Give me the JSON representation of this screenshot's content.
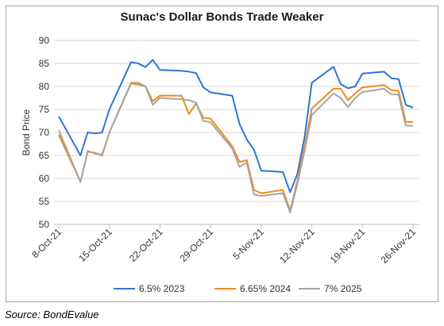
{
  "chart_data": {
    "type": "line",
    "title": "Sunac's Dollar Bonds Trade Weaker",
    "ylabel": "Bond Price",
    "xlabel": "",
    "ylim": [
      50,
      90
    ],
    "yticks": [
      50,
      55,
      60,
      65,
      70,
      75,
      80,
      85,
      90
    ],
    "grid": "horizontal",
    "legend": "bottom",
    "x_tick_labels": [
      "8-Oct-21",
      "15-Oct-21",
      "22-Oct-21",
      "29-Oct-21",
      "5-Nov-21",
      "12-Nov-21",
      "19-Nov-21",
      "26-Nov-21"
    ],
    "x": [
      "2021-10-08",
      "2021-10-11",
      "2021-10-12",
      "2021-10-13",
      "2021-10-14",
      "2021-10-15",
      "2021-10-18",
      "2021-10-19",
      "2021-10-20",
      "2021-10-21",
      "2021-10-22",
      "2021-10-25",
      "2021-10-26",
      "2021-10-27",
      "2021-10-28",
      "2021-10-29",
      "2021-11-01",
      "2021-11-02",
      "2021-11-03",
      "2021-11-04",
      "2021-11-05",
      "2021-11-08",
      "2021-11-09",
      "2021-11-10",
      "2021-11-11",
      "2021-11-12",
      "2021-11-15",
      "2021-11-16",
      "2021-11-17",
      "2021-11-18",
      "2021-11-19",
      "2021-11-22",
      "2021-11-23",
      "2021-11-24",
      "2021-11-25",
      "2021-11-26"
    ],
    "series": [
      {
        "name": "6.5% 2023",
        "color": "#2e75d6",
        "values": [
          73.5,
          65,
          70,
          69.8,
          70,
          75,
          85.3,
          85,
          84.2,
          85.8,
          83.6,
          83.4,
          83.2,
          82.9,
          79.8,
          78.7,
          78,
          71.8,
          68.5,
          66.2,
          61.7,
          61.4,
          57,
          61,
          69,
          80.8,
          84.3,
          80.5,
          79.6,
          80,
          82.8,
          83.2,
          81.8,
          81.6,
          76,
          75.4
        ]
      },
      {
        "name": "6.65% 2024",
        "color": "#f08a1c",
        "values": [
          69.5,
          59.3,
          65.8,
          65.6,
          65,
          70,
          80.8,
          80.8,
          80,
          76.8,
          78,
          78,
          74,
          76.3,
          73.2,
          73,
          67,
          63.6,
          64,
          57.5,
          56.8,
          57.5,
          53,
          59.5,
          67,
          75.2,
          79.5,
          79.5,
          77,
          78.5,
          79.8,
          80.3,
          79.2,
          79,
          72.3,
          72.3
        ]
      },
      {
        "name": "7% 2025",
        "color": "#a5a5a5",
        "values": [
          70.5,
          59.3,
          66,
          65.4,
          65.2,
          70,
          80.6,
          80.4,
          80,
          76,
          77.5,
          77.2,
          77,
          76.5,
          72.5,
          72.2,
          66.5,
          62.5,
          63.5,
          56.5,
          56.2,
          56.8,
          52.6,
          58.8,
          66,
          73.8,
          78.5,
          77.5,
          75.5,
          77.5,
          78.8,
          79.5,
          78.3,
          78.2,
          71.5,
          71.4
        ]
      }
    ]
  },
  "source": "Source: BondEvalue"
}
